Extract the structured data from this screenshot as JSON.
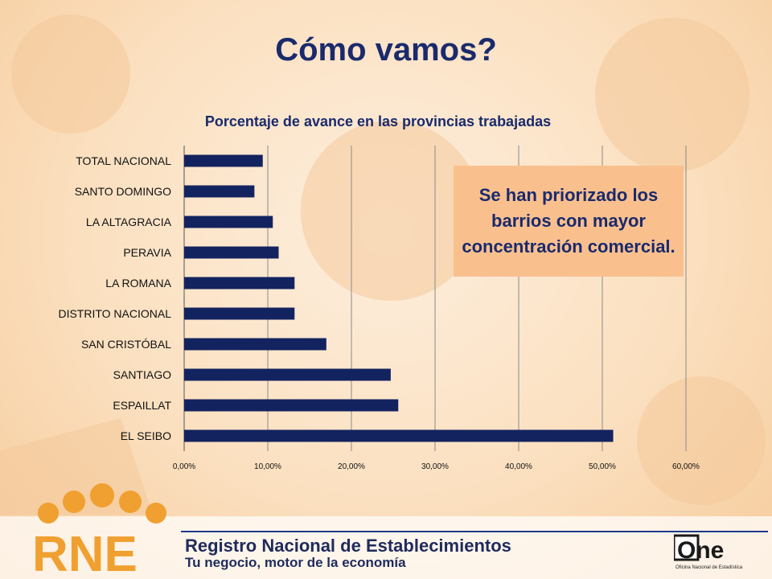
{
  "slide": {
    "title": "Cómo vamos?",
    "note": "Se han priorizado los barrios con mayor concentración comercial.",
    "footer": {
      "logo_text": "RNE",
      "registry_title": "Registro Nacional de Establecimientos",
      "registry_subtitle": "Tu negocio, motor de la economía",
      "one_logo_text": "One",
      "one_logo_caption": "Oficina Nacional de Estadística"
    },
    "colors": {
      "title": "#1a2a6c",
      "bar": "#13235f",
      "note_bg": "#f9c08e",
      "accent_orange": "#f0a030"
    }
  },
  "chart_data": {
    "type": "bar",
    "orientation": "horizontal",
    "title": "Porcentaje de avance en las provincias trabajadas",
    "xlabel": "",
    "ylabel": "",
    "categories": [
      "TOTAL NACIONAL",
      "SANTO DOMINGO",
      "LA ALTAGRACIA",
      "PERAVIA",
      "LA ROMANA",
      "DISTRITO NACIONAL",
      "SAN CRISTÓBAL",
      "SANTIAGO",
      "ESPAILLAT",
      "EL SEIBO"
    ],
    "values": [
      9.4,
      8.4,
      10.6,
      11.3,
      13.2,
      13.2,
      17.0,
      24.7,
      25.6,
      51.3
    ],
    "xlim": [
      0,
      60
    ],
    "xticks": [
      "0,00%",
      "10,00%",
      "20,00%",
      "30,00%",
      "40,00%",
      "50,00%",
      "60,00%"
    ],
    "grid": true,
    "legend": "none"
  }
}
